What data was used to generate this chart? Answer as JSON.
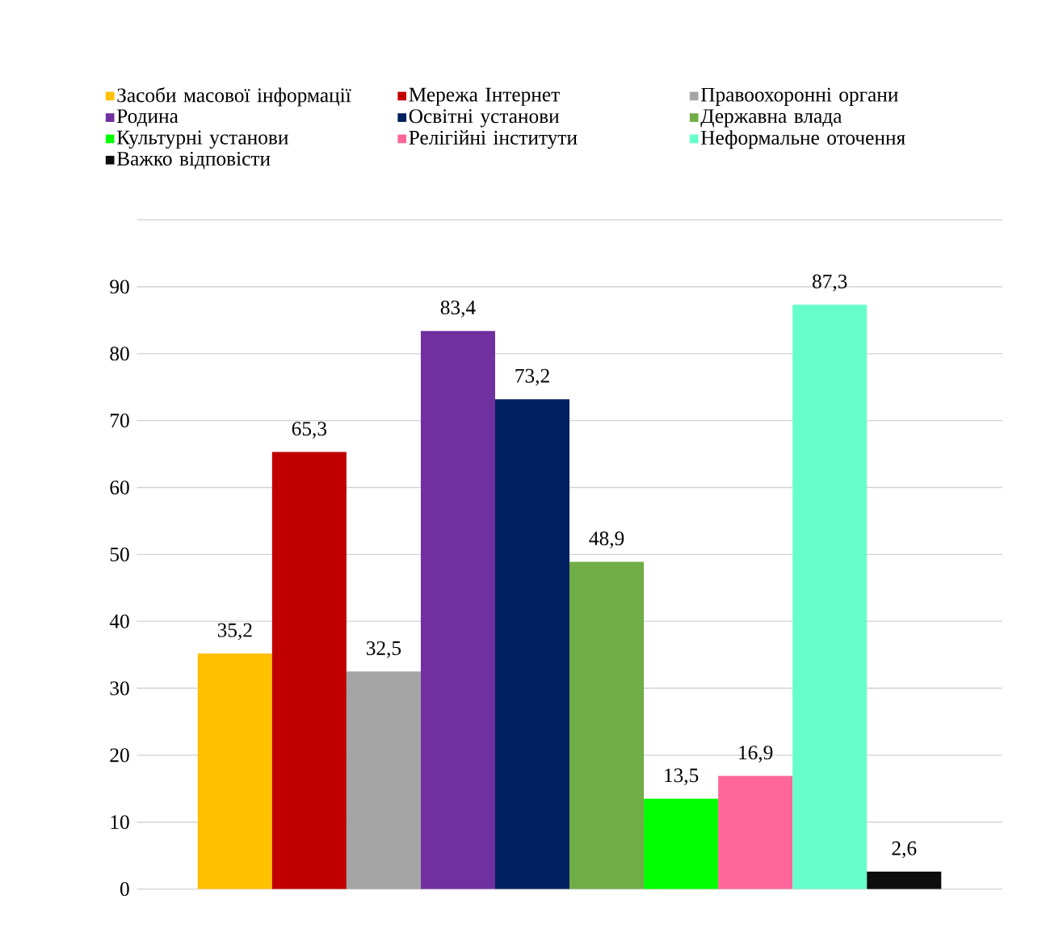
{
  "chart_data": {
    "type": "bar",
    "categories": [
      null
    ],
    "series": [
      {
        "name": "Засоби масової інформації",
        "color": "#ffc000",
        "values": [
          35.2
        ],
        "value_labels": [
          "35,2"
        ]
      },
      {
        "name": "Мережа Інтернет",
        "color": "#c00000",
        "values": [
          65.3
        ],
        "value_labels": [
          "65,3"
        ]
      },
      {
        "name": "Правоохоронні органи",
        "color": "#a5a5a5",
        "values": [
          32.5
        ],
        "value_labels": [
          "32,5"
        ]
      },
      {
        "name": "Родина",
        "color": "#7030a0",
        "values": [
          83.4
        ],
        "value_labels": [
          "83,4"
        ]
      },
      {
        "name": "Освітні установи",
        "color": "#002060",
        "values": [
          73.2
        ],
        "value_labels": [
          "73,2"
        ]
      },
      {
        "name": "Державна влада",
        "color": "#70ad47",
        "values": [
          48.9
        ],
        "value_labels": [
          "48,9"
        ]
      },
      {
        "name": "Культурні установи",
        "color": "#00ff00",
        "values": [
          13.5
        ],
        "value_labels": [
          "13,5"
        ]
      },
      {
        "name": "Релігійні інститути",
        "color": "#ff6699",
        "values": [
          16.9
        ],
        "value_labels": [
          "16,9"
        ]
      },
      {
        "name": "Неформальне оточення",
        "color": "#66ffcc",
        "values": [
          87.3
        ],
        "value_labels": [
          "87,3"
        ]
      },
      {
        "name": "Важко відповісти",
        "color": "#0d0d0d",
        "values": [
          2.6
        ],
        "value_labels": [
          "2,6"
        ]
      }
    ],
    "ylim": [
      0,
      100
    ],
    "yticks": [
      0,
      10,
      20,
      30,
      40,
      50,
      60,
      70,
      80,
      90,
      {
        "value": 100,
        "label": null
      }
    ],
    "grid": "y",
    "legend": "top"
  }
}
